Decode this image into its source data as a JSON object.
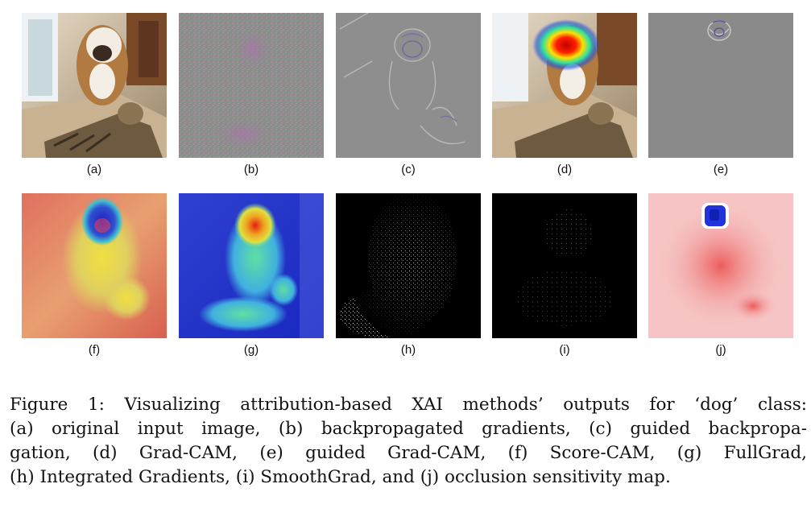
{
  "panels": [
    {
      "label": "(a)",
      "content": "original input image"
    },
    {
      "label": "(b)",
      "content": "backpropagated gradients"
    },
    {
      "label": "(c)",
      "content": "guided backpropagation"
    },
    {
      "label": "(d)",
      "content": "Grad-CAM"
    },
    {
      "label": "(e)",
      "content": "guided Grad-CAM"
    },
    {
      "label": "(f)",
      "content": "Score-CAM"
    },
    {
      "label": "(g)",
      "content": "FullGrad"
    },
    {
      "label": "(h)",
      "content": "Integrated Gradients"
    },
    {
      "label": "(i)",
      "content": "SmoothGrad"
    },
    {
      "label": "(j)",
      "content": "occlusion sensitivity map"
    }
  ],
  "caption": {
    "lines": [
      "Figure 1: Visualizing attribution-based XAI methods’ outputs for ‘dog’ class:",
      "(a) original input image, (b) backpropagated gradients, (c) guided backpropa-",
      "gation, (d) Grad-CAM, (e) guided Grad-CAM, (f) Score-CAM, (g) FullGrad,",
      "(h) Integrated Gradients, (i) SmoothGrad, and (j) occlusion sensitivity map."
    ]
  },
  "colors": {
    "background": "#ffffff",
    "text": "#111111",
    "occlusion_red": "#f04848",
    "occlusion_blue": "#2233dd",
    "jet_blue": "#2030d0",
    "jet_red": "#e81010"
  }
}
